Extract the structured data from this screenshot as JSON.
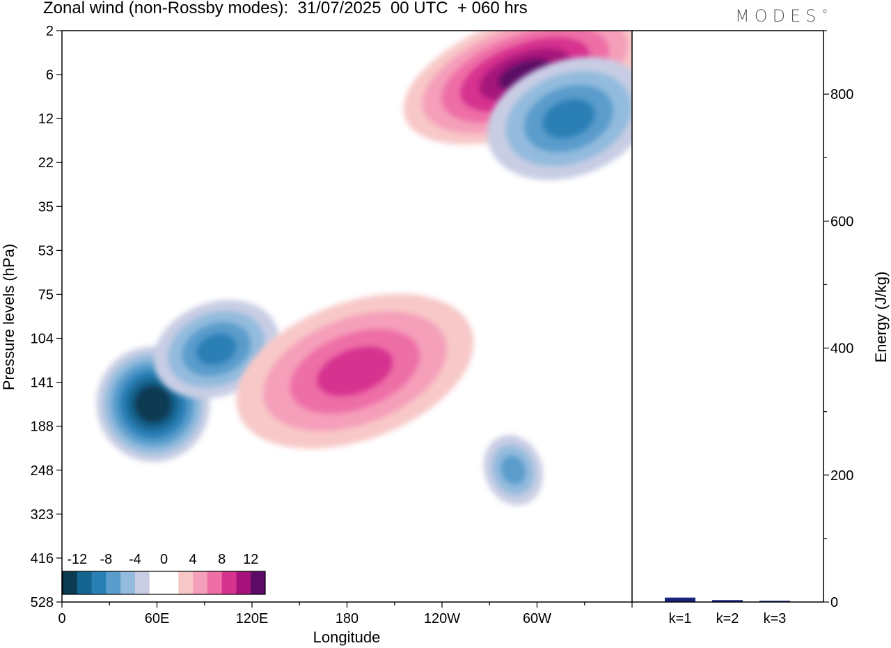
{
  "header": {
    "title": "Zonal wind (non-Rossby modes):  31/07/2025  00 UTC  + 060 hrs",
    "brand": "MODES",
    "brand_mark": "©"
  },
  "chart_data": [
    {
      "type": "heatmap",
      "title": "Zonal wind (non-Rossby modes):  31/07/2025  00 UTC  + 060 hrs",
      "xlabel": "Longitude",
      "ylabel": "Pressure levels (hPa)",
      "x_ticks": [
        "0",
        "60E",
        "120E",
        "180",
        "120W",
        "60W"
      ],
      "x_tick_degrees": [
        0,
        60,
        120,
        180,
        240,
        300
      ],
      "xlim": [
        0,
        360
      ],
      "y_ticks": [
        "2",
        "6",
        "12",
        "22",
        "35",
        "53",
        "75",
        "104",
        "141",
        "188",
        "248",
        "323",
        "416",
        "528"
      ],
      "colorbar": {
        "labels": [
          "-12",
          "-8",
          "-4",
          "0",
          "4",
          "8",
          "12"
        ],
        "levels": [
          -14,
          -12,
          -10,
          -8,
          -6,
          -4,
          -2,
          0,
          2,
          4,
          6,
          8,
          10,
          12,
          14
        ],
        "colors": [
          "#0b3a52",
          "#14648f",
          "#2a7fb5",
          "#5a9ccc",
          "#93bbdd",
          "#c8cde4",
          "#ffffff",
          "#ffffff",
          "#f8c8c8",
          "#f59fba",
          "#ee6ea6",
          "#d6338f",
          "#a5137a",
          "#5c0a66"
        ]
      },
      "features": [
        {
          "name": "strong-easterly-core",
          "lon": [
            35,
            80
          ],
          "level_index": [
            7.5,
            9.5
          ],
          "value": -14
        },
        {
          "name": "easterly-tongue",
          "lon": [
            70,
            125
          ],
          "level_index": [
            6.5,
            8
          ],
          "value": -8
        },
        {
          "name": "westerly-band-upper",
          "lon": [
            225,
            360
          ],
          "level_index": [
            0,
            2
          ],
          "value": 12
        },
        {
          "name": "easterly-band-upper",
          "lon": [
            280,
            360
          ],
          "level_index": [
            1,
            3
          ],
          "value": -8
        },
        {
          "name": "westerly-band-mid",
          "lon": [
            120,
            250
          ],
          "level_index": [
            6.5,
            9
          ],
          "value": 8
        },
        {
          "name": "lower-patch-east",
          "lon": [
            280,
            290
          ],
          "level_index": [
            9.5,
            10.5
          ],
          "value": -6
        }
      ]
    },
    {
      "type": "bar",
      "categories": [
        "k=1",
        "k=2",
        "k=3"
      ],
      "values": [
        7,
        3,
        2
      ],
      "ylabel": "Energy (J/kg)",
      "ylim": [
        0,
        900
      ],
      "y_ticks": [
        0,
        200,
        400,
        600,
        800
      ],
      "bar_color": "#1a237e"
    }
  ]
}
